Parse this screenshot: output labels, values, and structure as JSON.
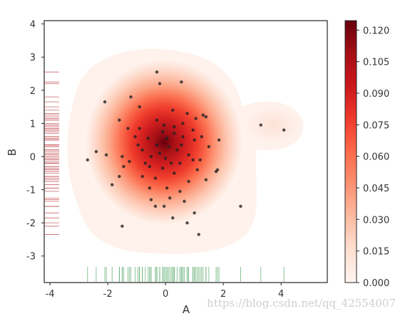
{
  "chart_data": {
    "type": "scatter",
    "title": "",
    "xlabel": "A",
    "ylabel": "B",
    "xlim": [
      -4.2,
      5.6
    ],
    "ylim": [
      -3.8,
      4.1
    ],
    "xticks": [
      "-4",
      "-2",
      "0",
      "2",
      "4"
    ],
    "xtick_values": [
      -4,
      -2,
      0,
      2,
      4
    ],
    "yticks": [
      "-3",
      "-2",
      "-1",
      "0",
      "1",
      "2",
      "3",
      "4"
    ],
    "ytick_values": [
      -3,
      -2,
      -1,
      0,
      1,
      2,
      3,
      4
    ],
    "grid": false,
    "density_overlay": "kde-reds",
    "rug_x_color": "#55a868",
    "rug_y_color": "#c44e52",
    "points": [
      [
        -0.3,
        2.55
      ],
      [
        0.55,
        2.25
      ],
      [
        -2.1,
        1.65
      ],
      [
        -1.2,
        1.8
      ],
      [
        -0.9,
        1.5
      ],
      [
        -1.6,
        1.1
      ],
      [
        -1.3,
        0.85
      ],
      [
        -0.9,
        0.85
      ],
      [
        -0.3,
        1.1
      ],
      [
        0.25,
        1.4
      ],
      [
        0.75,
        1.3
      ],
      [
        1.4,
        1.2
      ],
      [
        3.3,
        0.95
      ],
      [
        4.1,
        0.8
      ],
      [
        -1.05,
        0.6
      ],
      [
        -0.6,
        0.55
      ],
      [
        -0.1,
        0.75
      ],
      [
        0.3,
        0.9
      ],
      [
        0.6,
        0.6
      ],
      [
        1.0,
        0.5
      ],
      [
        1.85,
        0.5
      ],
      [
        -2.4,
        0.15
      ],
      [
        -2.05,
        0.05
      ],
      [
        -1.5,
        0.0
      ],
      [
        -0.8,
        0.2
      ],
      [
        -0.3,
        0.35
      ],
      [
        0.1,
        0.3
      ],
      [
        0.4,
        0.2
      ],
      [
        0.8,
        0.05
      ],
      [
        1.5,
        0.3
      ],
      [
        -2.7,
        -0.1
      ],
      [
        -1.45,
        -0.3
      ],
      [
        -0.55,
        -0.3
      ],
      [
        0.0,
        -0.05
      ],
      [
        0.5,
        -0.2
      ],
      [
        1.1,
        -0.4
      ],
      [
        1.75,
        -0.45
      ],
      [
        -1.6,
        -0.6
      ],
      [
        -0.8,
        -0.6
      ],
      [
        -0.35,
        -0.65
      ],
      [
        0.3,
        -0.5
      ],
      [
        0.8,
        -0.75
      ],
      [
        1.4,
        -0.7
      ],
      [
        -1.85,
        -0.85
      ],
      [
        -0.55,
        -0.95
      ],
      [
        0.05,
        -0.95
      ],
      [
        0.5,
        -1.05
      ],
      [
        -0.5,
        -1.3
      ],
      [
        0.15,
        -1.25
      ],
      [
        0.65,
        -1.35
      ],
      [
        -0.05,
        -1.5
      ],
      [
        -0.35,
        -1.5
      ],
      [
        1.0,
        -1.7
      ],
      [
        2.6,
        -1.5
      ],
      [
        0.25,
        -1.85
      ],
      [
        -1.5,
        -2.1
      ],
      [
        0.75,
        -2.0
      ],
      [
        1.15,
        -2.35
      ],
      [
        -0.2,
        0.1
      ],
      [
        0.05,
        0.55
      ],
      [
        0.3,
        0.7
      ],
      [
        -0.5,
        0.0
      ],
      [
        0.2,
        -0.2
      ],
      [
        1.3,
        1.25
      ],
      [
        -0.2,
        2.2
      ],
      [
        0.6,
        1.0
      ],
      [
        0.95,
        0.8
      ],
      [
        -0.05,
        0.95
      ],
      [
        1.25,
        0.6
      ],
      [
        -0.95,
        0.35
      ],
      [
        1.05,
        1.15
      ],
      [
        0.55,
        0.35
      ],
      [
        -1.25,
        -0.15
      ],
      [
        -0.7,
        -0.2
      ],
      [
        0.95,
        -0.1
      ],
      [
        1.2,
        -0.1
      ],
      [
        -0.1,
        -0.35
      ],
      [
        1.8,
        -0.4
      ]
    ]
  },
  "colorbar": {
    "ticks": [
      "0.000",
      "0.015",
      "0.030",
      "0.045",
      "0.060",
      "0.075",
      "0.090",
      "0.105",
      "0.120"
    ],
    "tick_values": [
      0.0,
      0.015,
      0.03,
      0.045,
      0.06,
      0.075,
      0.09,
      0.105,
      0.12
    ],
    "min": 0.0,
    "max": 0.1245,
    "colors": [
      "#fff5f0",
      "#fee0d2",
      "#fcbba1",
      "#fc9272",
      "#fb6a4a",
      "#ef3b2c",
      "#cb181d",
      "#a50f15",
      "#67000d"
    ]
  },
  "watermark": "https://blog.csdn.net/qq_42554007"
}
